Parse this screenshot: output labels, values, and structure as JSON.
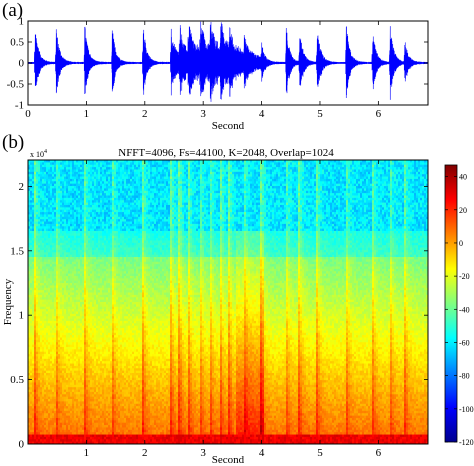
{
  "chart_data": [
    {
      "panel_label": "(a)",
      "type": "line",
      "xlabel": "Second",
      "xlim": [
        0,
        6.85
      ],
      "ylim": [
        -1,
        1
      ],
      "xticks": [
        0,
        1,
        2,
        3,
        4,
        5,
        6
      ],
      "yticks": [
        -1,
        -0.5,
        0,
        0.5,
        1
      ],
      "line_color": "#0000ff",
      "onset_times": [
        0.12,
        0.48,
        0.97,
        1.44,
        1.97,
        2.45,
        2.6,
        2.75,
        2.95,
        3.12,
        3.3,
        3.45,
        3.7,
        4.0,
        4.42,
        4.65,
        4.95,
        5.45,
        5.9,
        6.2,
        6.45
      ],
      "onset_peaks": [
        0.95,
        0.92,
        0.97,
        0.9,
        0.95,
        0.85,
        0.8,
        0.92,
        0.97,
        0.9,
        0.82,
        0.55,
        0.45,
        0.5,
        0.92,
        0.82,
        0.92,
        0.95,
        0.82,
        0.95,
        0.55
      ],
      "dense_region": [
        2.5,
        4.0
      ]
    },
    {
      "panel_label": "(b)",
      "type": "heatmap",
      "title": "NFFT=4096, Fs=44100, K=2048, Overlap=1024",
      "xlabel": "Second",
      "ylabel": "Frequency",
      "y_exponent": "x 10",
      "y_exponent_power": "4",
      "xlim": [
        0,
        6.85
      ],
      "ylim": [
        0,
        22050
      ],
      "xticks": [
        1,
        2,
        3,
        4,
        5,
        6
      ],
      "yticks": [
        0,
        5000,
        10000,
        15000,
        20000
      ],
      "ytick_labels": [
        "0",
        "0.5",
        "1",
        "1.5",
        "2"
      ],
      "colorbar": {
        "min": -120,
        "max": 47,
        "ticks": [
          40,
          20,
          0,
          -20,
          -40,
          -60,
          -80,
          -100,
          -120
        ]
      },
      "colormap": "jet",
      "cutoff_frequency": 16500,
      "onset_times": [
        0.12,
        0.48,
        0.97,
        1.44,
        1.97,
        2.45,
        2.6,
        2.75,
        2.95,
        3.12,
        3.3,
        3.45,
        3.7,
        4.0,
        4.42,
        4.65,
        4.95,
        5.45,
        5.9,
        6.2,
        6.45
      ],
      "dense_region": [
        3.55,
        4.05
      ]
    }
  ]
}
